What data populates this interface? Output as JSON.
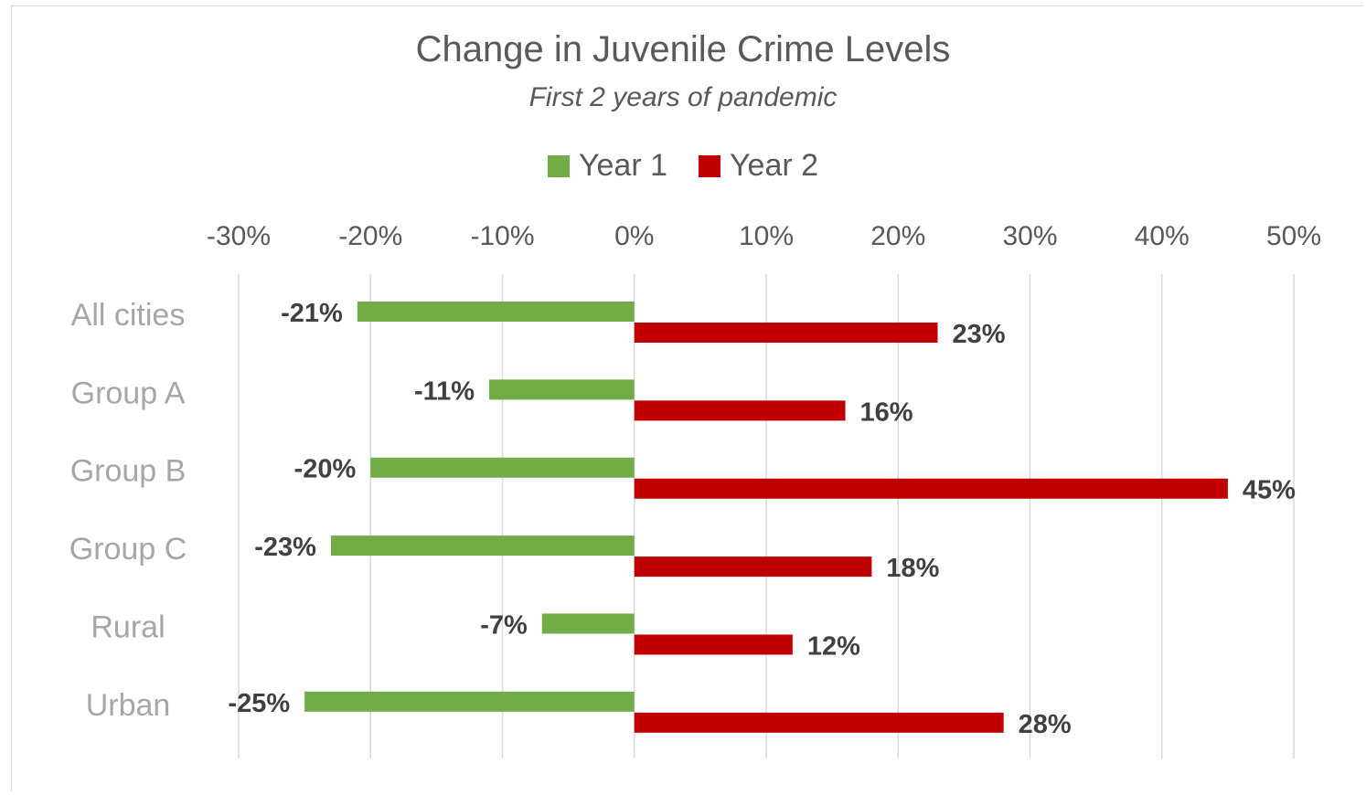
{
  "chart_data": {
    "type": "bar",
    "orientation": "horizontal",
    "title": "Change in Juvenile Crime Levels",
    "subtitle": "First 2 years of pandemic",
    "categories": [
      "All cities",
      "Group A",
      "Group B",
      "Group C",
      "Rural",
      "Urban"
    ],
    "series": [
      {
        "name": "Year 1",
        "color": "#70ad47",
        "values": [
          -21,
          -11,
          -20,
          -23,
          -7,
          -25
        ],
        "labels": [
          "-21%",
          "-11%",
          "-20%",
          "-23%",
          "-7%",
          "-25%"
        ]
      },
      {
        "name": "Year 2",
        "color": "#c00000",
        "values": [
          23,
          16,
          45,
          18,
          12,
          28
        ],
        "labels": [
          "23%",
          "16%",
          "45%",
          "18%",
          "12%",
          "28%"
        ]
      }
    ],
    "xlim": [
      -30,
      50
    ],
    "xticks": [
      -30,
      -20,
      -10,
      0,
      10,
      20,
      30,
      40,
      50
    ],
    "xtick_labels": [
      "-30%",
      "-20%",
      "-10%",
      "0%",
      "10%",
      "20%",
      "30%",
      "40%",
      "50%"
    ],
    "grid": true,
    "legend_position": "top"
  }
}
